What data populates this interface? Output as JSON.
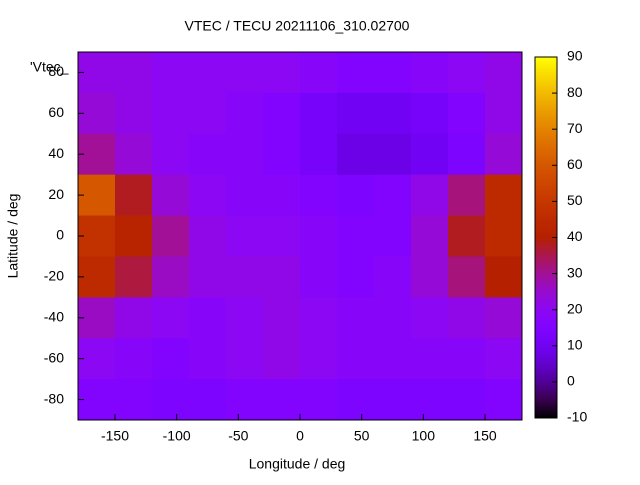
{
  "chart_data": {
    "type": "heatmap",
    "title": "VTEC / TECU 20211106_310.02700",
    "xlabel": "Longitude / deg",
    "ylabel": "Latitude / deg",
    "key": "'Vtec_",
    "colormap": "gnuplot",
    "x": [
      -165,
      -135,
      -105,
      -75,
      -45,
      -15,
      15,
      45,
      75,
      105,
      135,
      165
    ],
    "y": [
      80,
      60,
      40,
      20,
      0,
      -20,
      -40,
      -60,
      -80
    ],
    "z": [
      [
        22,
        22,
        20,
        20,
        20,
        20,
        18,
        16,
        16,
        18,
        20,
        22
      ],
      [
        24,
        22,
        20,
        20,
        18,
        16,
        12,
        10,
        10,
        12,
        16,
        22
      ],
      [
        30,
        24,
        20,
        18,
        18,
        16,
        12,
        8,
        8,
        10,
        14,
        24
      ],
      [
        60,
        38,
        24,
        20,
        18,
        18,
        16,
        14,
        16,
        22,
        32,
        45
      ],
      [
        48,
        42,
        30,
        22,
        20,
        20,
        18,
        16,
        16,
        24,
        38,
        45
      ],
      [
        45,
        36,
        26,
        22,
        22,
        22,
        18,
        16,
        18,
        24,
        32,
        40
      ],
      [
        26,
        22,
        20,
        18,
        20,
        22,
        20,
        18,
        18,
        20,
        22,
        24
      ],
      [
        20,
        18,
        16,
        18,
        20,
        22,
        20,
        18,
        18,
        18,
        18,
        20
      ],
      [
        16,
        16,
        14,
        14,
        16,
        16,
        16,
        14,
        14,
        14,
        14,
        16
      ]
    ],
    "xlim": [
      -180,
      180
    ],
    "ylim": [
      -90,
      90
    ],
    "xticks": [
      -150,
      -100,
      -50,
      0,
      50,
      100,
      150
    ],
    "yticks": [
      -80,
      -60,
      -40,
      -20,
      0,
      20,
      40,
      60,
      80
    ],
    "zlim": [
      -10,
      90
    ],
    "zticks": [
      -10,
      0,
      10,
      20,
      30,
      40,
      50,
      60,
      70,
      80,
      90
    ]
  }
}
